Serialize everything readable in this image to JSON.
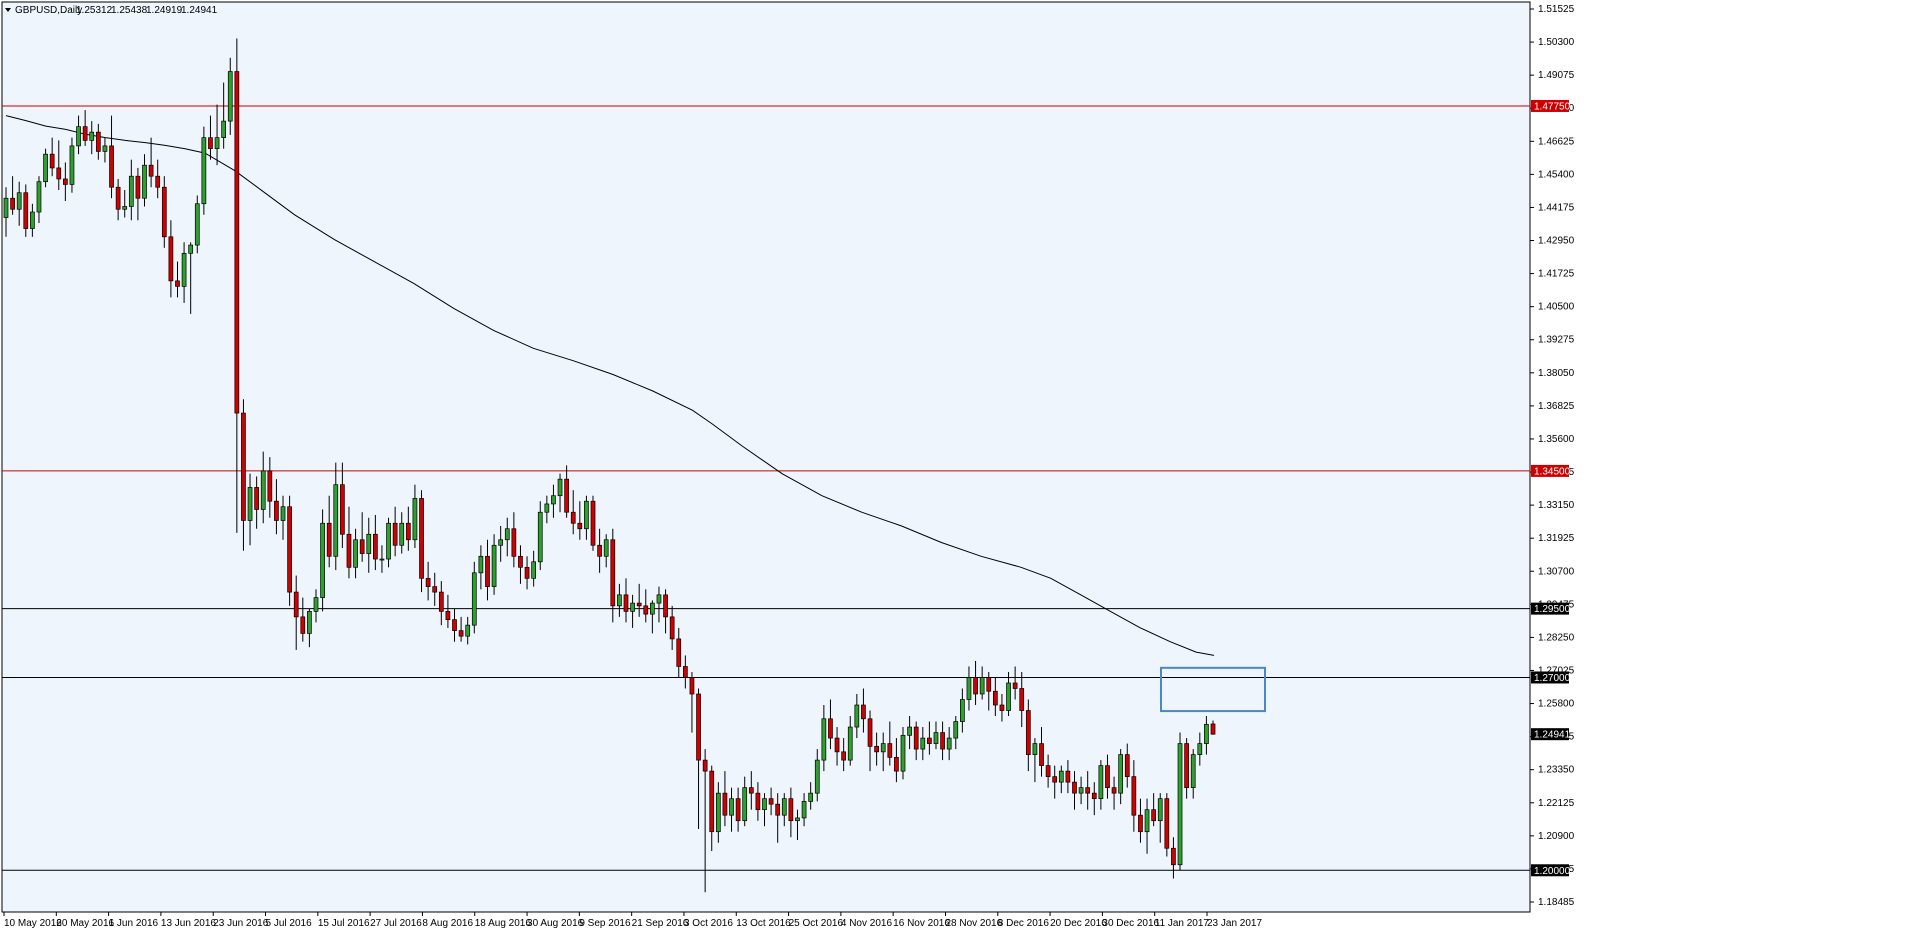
{
  "chart_data": {
    "type": "candlestick",
    "symbol_timeframe": "GBPUSD,Daily",
    "ohlc": [
      "1.25312",
      "1.25438",
      "1.24919",
      "1.24941"
    ],
    "price_range": [
      1.18485,
      1.51525
    ],
    "price_ticks": [
      "1.51525",
      "1.50300",
      "1.49075",
      "1.47850",
      "1.46625",
      "1.45400",
      "1.44175",
      "1.42950",
      "1.41725",
      "1.40500",
      "1.39275",
      "1.38050",
      "1.36825",
      "1.35600",
      "1.34375",
      "1.33150",
      "1.31925",
      "1.30700",
      "1.29475",
      "1.28250",
      "1.27025",
      "1.25800",
      "1.24575",
      "1.23350",
      "1.22125",
      "1.20900",
      "1.19675",
      "1.18485"
    ],
    "date_ticks": [
      "10 May 2016",
      "20 May 2016",
      "1 Jun 2016",
      "13 Jun 2016",
      "23 Jun 2016",
      "5 Jul 2016",
      "15 Jul 2016",
      "27 Jul 2016",
      "8 Aug 2016",
      "18 Aug 2016",
      "30 Aug 2016",
      "9 Sep 2016",
      "21 Sep 2016",
      "3 Oct 2016",
      "13 Oct 2016",
      "25 Oct 2016",
      "4 Nov 2016",
      "16 Nov 2016",
      "28 Nov 2016",
      "8 Dec 2016",
      "20 Dec 2016",
      "30 Dec 2016",
      "11 Jan 2017",
      "23 Jan 2017"
    ],
    "horizontal_levels": [
      {
        "price": 1.4775,
        "label": "1.47750",
        "color": "#cc0000"
      },
      {
        "price": 1.345,
        "label": "1.34500",
        "color": "#cc0000"
      },
      {
        "price": 1.295,
        "label": "1.29500",
        "color": "#000000"
      },
      {
        "price": 1.27,
        "label": "1.27000",
        "color": "#000000"
      },
      {
        "price": 1.2,
        "label": "1.20000",
        "color": "#000000"
      }
    ],
    "current_price": {
      "price": 1.24941,
      "label": "1.24941"
    },
    "candles": [
      [
        1.437,
        1.448,
        1.43,
        1.444
      ],
      [
        1.444,
        1.452,
        1.438,
        1.44
      ],
      [
        1.44,
        1.45,
        1.434,
        1.446
      ],
      [
        1.446,
        1.449,
        1.43,
        1.433
      ],
      [
        1.433,
        1.442,
        1.43,
        1.439
      ],
      [
        1.439,
        1.452,
        1.435,
        1.45
      ],
      [
        1.45,
        1.462,
        1.448,
        1.46
      ],
      [
        1.46,
        1.466,
        1.452,
        1.455
      ],
      [
        1.455,
        1.465,
        1.447,
        1.451
      ],
      [
        1.451,
        1.457,
        1.443,
        1.449
      ],
      [
        1.449,
        1.466,
        1.446,
        1.463
      ],
      [
        1.463,
        1.474,
        1.46,
        1.47
      ],
      [
        1.47,
        1.476,
        1.463,
        1.465
      ],
      [
        1.465,
        1.472,
        1.46,
        1.468
      ],
      [
        1.468,
        1.471,
        1.458,
        1.461
      ],
      [
        1.461,
        1.466,
        1.457,
        1.463
      ],
      [
        1.463,
        1.474,
        1.444,
        1.448
      ],
      [
        1.448,
        1.451,
        1.436,
        1.44
      ],
      [
        1.44,
        1.447,
        1.437,
        1.441
      ],
      [
        1.441,
        1.458,
        1.436,
        1.452
      ],
      [
        1.452,
        1.455,
        1.436,
        1.444
      ],
      [
        1.444,
        1.46,
        1.441,
        1.456
      ],
      [
        1.456,
        1.466,
        1.448,
        1.452
      ],
      [
        1.452,
        1.458,
        1.444,
        1.448
      ],
      [
        1.448,
        1.452,
        1.426,
        1.43
      ],
      [
        1.43,
        1.436,
        1.408,
        1.414
      ],
      [
        1.414,
        1.421,
        1.408,
        1.412
      ],
      [
        1.412,
        1.428,
        1.406,
        1.424
      ],
      [
        1.424,
        1.428,
        1.402,
        1.427
      ],
      [
        1.427,
        1.445,
        1.424,
        1.442
      ],
      [
        1.442,
        1.47,
        1.438,
        1.466
      ],
      [
        1.466,
        1.474,
        1.458,
        1.462
      ],
      [
        1.462,
        1.478,
        1.456,
        1.466
      ],
      [
        1.466,
        1.486,
        1.462,
        1.472
      ],
      [
        1.472,
        1.495,
        1.467,
        1.49
      ],
      [
        1.49,
        1.502,
        1.3225,
        1.366
      ],
      [
        1.366,
        1.371,
        1.316,
        1.327
      ],
      [
        1.327,
        1.344,
        1.318,
        1.339
      ],
      [
        1.339,
        1.343,
        1.324,
        1.331
      ],
      [
        1.331,
        1.352,
        1.326,
        1.345
      ],
      [
        1.345,
        1.35,
        1.328,
        1.334
      ],
      [
        1.334,
        1.342,
        1.322,
        1.327
      ],
      [
        1.327,
        1.336,
        1.32,
        1.332
      ],
      [
        1.332,
        1.336,
        1.296,
        1.301
      ],
      [
        1.301,
        1.307,
        1.28,
        1.292
      ],
      [
        1.292,
        1.299,
        1.283,
        1.286
      ],
      [
        1.286,
        1.295,
        1.281,
        1.294
      ],
      [
        1.294,
        1.302,
        1.29,
        1.299
      ],
      [
        1.299,
        1.331,
        1.294,
        1.326
      ],
      [
        1.326,
        1.336,
        1.31,
        1.314
      ],
      [
        1.314,
        1.348,
        1.309,
        1.34
      ],
      [
        1.34,
        1.348,
        1.317,
        1.322
      ],
      [
        1.322,
        1.332,
        1.306,
        1.31
      ],
      [
        1.31,
        1.324,
        1.306,
        1.32
      ],
      [
        1.32,
        1.33,
        1.312,
        1.315
      ],
      [
        1.315,
        1.328,
        1.308,
        1.322
      ],
      [
        1.322,
        1.329,
        1.309,
        1.313
      ],
      [
        1.313,
        1.318,
        1.308,
        1.313
      ],
      [
        1.313,
        1.328,
        1.31,
        1.326
      ],
      [
        1.326,
        1.332,
        1.314,
        1.318
      ],
      [
        1.318,
        1.33,
        1.315,
        1.326
      ],
      [
        1.326,
        1.332,
        1.316,
        1.32
      ],
      [
        1.32,
        1.34,
        1.317,
        1.335
      ],
      [
        1.335,
        1.338,
        1.301,
        1.306
      ],
      [
        1.306,
        1.312,
        1.298,
        1.303
      ],
      [
        1.303,
        1.308,
        1.296,
        1.301
      ],
      [
        1.301,
        1.305,
        1.289,
        1.294
      ],
      [
        1.294,
        1.3,
        1.288,
        1.291
      ],
      [
        1.291,
        1.295,
        1.283,
        1.287
      ],
      [
        1.287,
        1.292,
        1.283,
        1.285
      ],
      [
        1.285,
        1.292,
        1.282,
        1.289
      ],
      [
        1.289,
        1.312,
        1.286,
        1.308
      ],
      [
        1.308,
        1.318,
        1.302,
        1.314
      ],
      [
        1.314,
        1.32,
        1.298,
        1.303
      ],
      [
        1.303,
        1.322,
        1.3,
        1.318
      ],
      [
        1.318,
        1.325,
        1.312,
        1.32
      ],
      [
        1.32,
        1.328,
        1.314,
        1.324
      ],
      [
        1.324,
        1.33,
        1.31,
        1.314
      ],
      [
        1.314,
        1.318,
        1.304,
        1.31
      ],
      [
        1.31,
        1.314,
        1.302,
        1.306
      ],
      [
        1.306,
        1.316,
        1.303,
        1.312
      ],
      [
        1.312,
        1.334,
        1.309,
        1.33
      ],
      [
        1.33,
        1.336,
        1.326,
        1.333
      ],
      [
        1.333,
        1.34,
        1.328,
        1.336
      ],
      [
        1.336,
        1.344,
        1.33,
        1.342
      ],
      [
        1.342,
        1.347,
        1.328,
        1.33
      ],
      [
        1.33,
        1.338,
        1.322,
        1.326
      ],
      [
        1.326,
        1.334,
        1.32,
        1.324
      ],
      [
        1.324,
        1.336,
        1.32,
        1.334
      ],
      [
        1.334,
        1.336,
        1.316,
        1.318
      ],
      [
        1.318,
        1.324,
        1.308,
        1.314
      ],
      [
        1.314,
        1.322,
        1.31,
        1.32
      ],
      [
        1.32,
        1.324,
        1.29,
        1.296
      ],
      [
        1.296,
        1.304,
        1.292,
        1.3
      ],
      [
        1.3,
        1.306,
        1.29,
        1.294
      ],
      [
        1.294,
        1.3,
        1.288,
        1.297
      ],
      [
        1.297,
        1.304,
        1.292,
        1.296
      ],
      [
        1.296,
        1.302,
        1.29,
        1.293
      ],
      [
        1.293,
        1.298,
        1.286,
        1.297
      ],
      [
        1.297,
        1.303,
        1.29,
        1.3
      ],
      [
        1.3,
        1.302,
        1.286,
        1.292
      ],
      [
        1.292,
        1.296,
        1.28,
        1.284
      ],
      [
        1.284,
        1.288,
        1.27,
        1.274
      ],
      [
        1.274,
        1.278,
        1.266,
        1.27
      ],
      [
        1.27,
        1.272,
        1.25,
        1.264
      ],
      [
        1.264,
        1.266,
        1.215,
        1.24
      ],
      [
        1.24,
        1.244,
        1.192,
        1.236
      ],
      [
        1.236,
        1.238,
        1.207,
        1.214
      ],
      [
        1.214,
        1.232,
        1.21,
        1.228
      ],
      [
        1.228,
        1.236,
        1.216,
        1.22
      ],
      [
        1.22,
        1.23,
        1.214,
        1.226
      ],
      [
        1.226,
        1.23,
        1.214,
        1.218
      ],
      [
        1.218,
        1.234,
        1.216,
        1.23
      ],
      [
        1.23,
        1.236,
        1.222,
        1.228
      ],
      [
        1.228,
        1.232,
        1.218,
        1.222
      ],
      [
        1.222,
        1.228,
        1.216,
        1.226
      ],
      [
        1.226,
        1.23,
        1.22,
        1.224
      ],
      [
        1.224,
        1.228,
        1.21,
        1.22
      ],
      [
        1.22,
        1.228,
        1.216,
        1.226
      ],
      [
        1.226,
        1.23,
        1.212,
        1.218
      ],
      [
        1.218,
        1.222,
        1.211,
        1.219
      ],
      [
        1.219,
        1.228,
        1.216,
        1.225
      ],
      [
        1.225,
        1.232,
        1.222,
        1.228
      ],
      [
        1.228,
        1.244,
        1.225,
        1.24
      ],
      [
        1.24,
        1.26,
        1.236,
        1.255
      ],
      [
        1.255,
        1.262,
        1.244,
        1.248
      ],
      [
        1.248,
        1.252,
        1.238,
        1.243
      ],
      [
        1.243,
        1.248,
        1.236,
        1.24
      ],
      [
        1.24,
        1.256,
        1.238,
        1.252
      ],
      [
        1.252,
        1.264,
        1.248,
        1.26
      ],
      [
        1.26,
        1.266,
        1.25,
        1.255
      ],
      [
        1.255,
        1.258,
        1.236,
        1.245
      ],
      [
        1.245,
        1.25,
        1.238,
        1.243
      ],
      [
        1.243,
        1.25,
        1.236,
        1.246
      ],
      [
        1.246,
        1.254,
        1.238,
        1.241
      ],
      [
        1.241,
        1.248,
        1.232,
        1.236
      ],
      [
        1.236,
        1.252,
        1.233,
        1.249
      ],
      [
        1.249,
        1.256,
        1.244,
        1.252
      ],
      [
        1.252,
        1.254,
        1.24,
        1.244
      ],
      [
        1.244,
        1.252,
        1.24,
        1.248
      ],
      [
        1.248,
        1.254,
        1.242,
        1.246
      ],
      [
        1.246,
        1.254,
        1.244,
        1.25
      ],
      [
        1.25,
        1.254,
        1.24,
        1.244
      ],
      [
        1.244,
        1.252,
        1.24,
        1.248
      ],
      [
        1.248,
        1.256,
        1.244,
        1.254
      ],
      [
        1.254,
        1.266,
        1.25,
        1.262
      ],
      [
        1.262,
        1.274,
        1.258,
        1.27
      ],
      [
        1.27,
        1.276,
        1.26,
        1.264
      ],
      [
        1.264,
        1.274,
        1.262,
        1.27
      ],
      [
        1.27,
        1.272,
        1.258,
        1.265
      ],
      [
        1.265,
        1.27,
        1.256,
        1.26
      ],
      [
        1.26,
        1.264,
        1.254,
        1.258
      ],
      [
        1.258,
        1.272,
        1.256,
        1.268
      ],
      [
        1.268,
        1.274,
        1.262,
        1.266
      ],
      [
        1.266,
        1.272,
        1.252,
        1.258
      ],
      [
        1.258,
        1.262,
        1.236,
        1.242
      ],
      [
        1.242,
        1.248,
        1.232,
        1.246
      ],
      [
        1.246,
        1.252,
        1.234,
        1.238
      ],
      [
        1.238,
        1.242,
        1.23,
        1.234
      ],
      [
        1.234,
        1.238,
        1.226,
        1.232
      ],
      [
        1.232,
        1.238,
        1.228,
        1.236
      ],
      [
        1.236,
        1.24,
        1.228,
        1.232
      ],
      [
        1.232,
        1.236,
        1.222,
        1.228
      ],
      [
        1.228,
        1.234,
        1.224,
        1.23
      ],
      [
        1.23,
        1.236,
        1.222,
        1.228
      ],
      [
        1.228,
        1.232,
        1.22,
        1.226
      ],
      [
        1.226,
        1.24,
        1.222,
        1.238
      ],
      [
        1.238,
        1.242,
        1.226,
        1.23
      ],
      [
        1.23,
        1.234,
        1.222,
        1.228
      ],
      [
        1.228,
        1.244,
        1.224,
        1.242
      ],
      [
        1.242,
        1.246,
        1.23,
        1.234
      ],
      [
        1.234,
        1.24,
        1.214,
        1.22
      ],
      [
        1.22,
        1.226,
        1.21,
        1.214
      ],
      [
        1.214,
        1.226,
        1.206,
        1.222
      ],
      [
        1.222,
        1.228,
        1.216,
        1.218
      ],
      [
        1.218,
        1.228,
        1.21,
        1.226
      ],
      [
        1.226,
        1.228,
        1.205,
        1.208
      ],
      [
        1.208,
        1.212,
        1.197,
        1.202
      ],
      [
        1.202,
        1.25,
        1.2,
        1.246
      ],
      [
        1.246,
        1.248,
        1.226,
        1.23
      ],
      [
        1.23,
        1.244,
        1.226,
        1.242
      ],
      [
        1.242,
        1.25,
        1.238,
        1.246
      ],
      [
        1.246,
        1.256,
        1.242,
        1.253
      ],
      [
        1.25312,
        1.25438,
        1.24919,
        1.24941
      ]
    ],
    "moving_average": [
      [
        0,
        1.474
      ],
      [
        20,
        1.4722
      ],
      [
        40,
        1.4702
      ],
      [
        60,
        1.469
      ],
      [
        80,
        1.4672
      ],
      [
        100,
        1.466
      ],
      [
        120,
        1.465
      ],
      [
        140,
        1.4642
      ],
      [
        160,
        1.4632
      ],
      [
        180,
        1.462
      ],
      [
        200,
        1.4604
      ],
      [
        230,
        1.454
      ],
      [
        260,
        1.446
      ],
      [
        290,
        1.438
      ],
      [
        330,
        1.429
      ],
      [
        370,
        1.421
      ],
      [
        410,
        1.413
      ],
      [
        450,
        1.404
      ],
      [
        490,
        1.396
      ],
      [
        530,
        1.3895
      ],
      [
        570,
        1.385
      ],
      [
        610,
        1.38
      ],
      [
        650,
        1.374
      ],
      [
        690,
        1.367
      ],
      [
        710,
        1.362
      ],
      [
        740,
        1.354
      ],
      [
        780,
        1.344
      ],
      [
        820,
        1.336
      ],
      [
        860,
        1.33
      ],
      [
        900,
        1.325
      ],
      [
        940,
        1.319
      ],
      [
        980,
        1.314
      ],
      [
        1020,
        1.31
      ],
      [
        1050,
        1.306
      ],
      [
        1080,
        1.3
      ],
      [
        1110,
        1.294
      ],
      [
        1140,
        1.288
      ],
      [
        1170,
        1.283
      ],
      [
        1196,
        1.2792
      ],
      [
        1214,
        1.278
      ]
    ],
    "highlight_box": {
      "price_top": 1.2735,
      "price_bottom": 1.2578
    },
    "colors": {
      "background": "#eef5fc",
      "bull": "#2ea02e",
      "bear": "#d10000",
      "box": "#4a86c8",
      "grid_text": "#000000"
    }
  }
}
